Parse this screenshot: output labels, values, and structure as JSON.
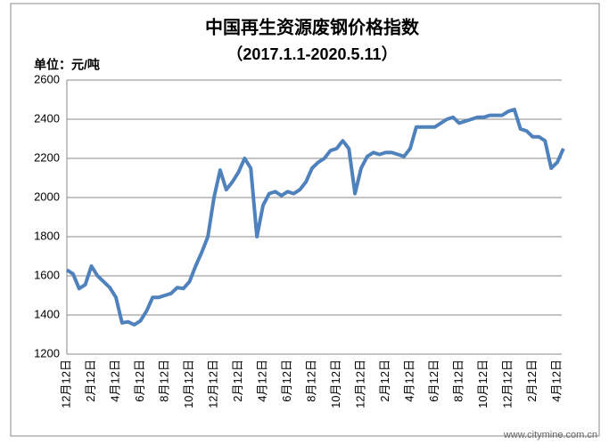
{
  "chart_data": {
    "type": "line",
    "title": "中国再生资源废钢价格指数",
    "subtitle": "（2017.1.1-2020.5.11）",
    "y_label": "单位：元/吨",
    "watermark": "www.citymine.com.cn",
    "categories": [
      "12月12日",
      null,
      null,
      null,
      "2月12日",
      null,
      null,
      null,
      "4月12日",
      null,
      null,
      null,
      "6月12日",
      null,
      null,
      null,
      "8月12日",
      null,
      null,
      null,
      "10月12日",
      null,
      null,
      null,
      "12月12日",
      null,
      null,
      null,
      "2月12日",
      null,
      null,
      null,
      "4月12日",
      null,
      null,
      null,
      "6月12日",
      null,
      null,
      null,
      "8月12日",
      null,
      null,
      null,
      "10月12日",
      null,
      null,
      null,
      "12月12日",
      null,
      null,
      null,
      "2月12日",
      null,
      null,
      null,
      "4月12日",
      null,
      null,
      null,
      "6月12日",
      null,
      null,
      null,
      "8月12日",
      null,
      null,
      null,
      "10月12日",
      null,
      null,
      null,
      "12月12日",
      null,
      null,
      null,
      "2月12日",
      null,
      null,
      null,
      "4月12日",
      null
    ],
    "series": [
      {
        "color": "#4f81bd",
        "values": [
          1630,
          1610,
          1535,
          1555,
          1650,
          1600,
          1570,
          1540,
          1490,
          1360,
          1365,
          1350,
          1370,
          1420,
          1490,
          1490,
          1500,
          1510,
          1540,
          1535,
          1570,
          1650,
          1720,
          1800,
          2000,
          2140,
          2040,
          2080,
          2130,
          2200,
          2150,
          1800,
          1960,
          2020,
          2030,
          2010,
          2030,
          2020,
          2040,
          2080,
          2150,
          2180,
          2200,
          2240,
          2250,
          2290,
          2250,
          2020,
          2150,
          2210,
          2230,
          2220,
          2230,
          2230,
          2220,
          2210,
          2250,
          2360,
          2360,
          2360,
          2360,
          2380,
          2400,
          2410,
          2380,
          2390,
          2400,
          2410,
          2410,
          2420,
          2420,
          2420,
          2440,
          2450,
          2350,
          2340,
          2310,
          2310,
          2290,
          2150,
          2180,
          2250
        ]
      }
    ],
    "ylim": [
      1200,
      2600
    ],
    "yticks": [
      1200,
      1400,
      1600,
      1800,
      2000,
      2200,
      2400,
      2600
    ],
    "grid": true
  }
}
